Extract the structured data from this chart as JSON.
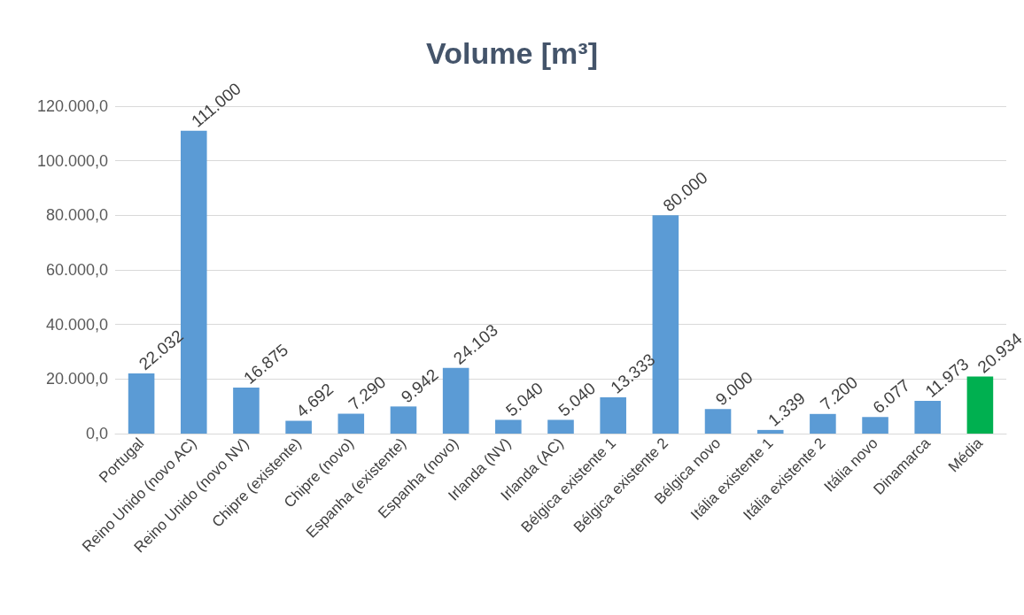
{
  "chart_data": {
    "type": "bar",
    "title": "Volume [m³]",
    "categories": [
      "Portugal",
      "Reino Unido (novo AC)",
      "Reino Unido (novo NV)",
      "Chipre (existente)",
      "Chipre (novo)",
      "Espanha (existente)",
      "Espanha (novo)",
      "Irlanda (NV)",
      "Irlanda (AC)",
      "Bélgica existente 1",
      "Bélgica existente 2",
      "Bélgica novo",
      "Itália existente 1",
      "Itália existente 2",
      "Itália novo",
      "Dinamarca",
      "Média"
    ],
    "values": [
      22032,
      111000,
      16875,
      4692,
      7290,
      9942,
      24103,
      5040,
      5040,
      13333,
      80000,
      9000,
      1339,
      7200,
      6077,
      11973,
      20934
    ],
    "value_labels": [
      "22.032",
      "111.000",
      "16.875",
      "4.692",
      "7.290",
      "9.942",
      "24.103",
      "5.040",
      "5.040",
      "13.333",
      "80.000",
      "9.000",
      "1.339",
      "7.200",
      "6.077",
      "11.973",
      "20.934"
    ],
    "colors": [
      "#5b9bd5",
      "#5b9bd5",
      "#5b9bd5",
      "#5b9bd5",
      "#5b9bd5",
      "#5b9bd5",
      "#5b9bd5",
      "#5b9bd5",
      "#5b9bd5",
      "#5b9bd5",
      "#5b9bd5",
      "#5b9bd5",
      "#5b9bd5",
      "#5b9bd5",
      "#5b9bd5",
      "#5b9bd5",
      "#00b050"
    ],
    "ylim": [
      0,
      120000
    ],
    "yticks": [
      {
        "value": 0,
        "label": "0,0"
      },
      {
        "value": 20000,
        "label": "20.000,0"
      },
      {
        "value": 40000,
        "label": "40.000,0"
      },
      {
        "value": 60000,
        "label": "60.000,0"
      },
      {
        "value": 80000,
        "label": "80.000,0"
      },
      {
        "value": 100000,
        "label": "100.000,0"
      },
      {
        "value": 120000,
        "label": "120.000,0"
      }
    ],
    "grid": "y"
  }
}
